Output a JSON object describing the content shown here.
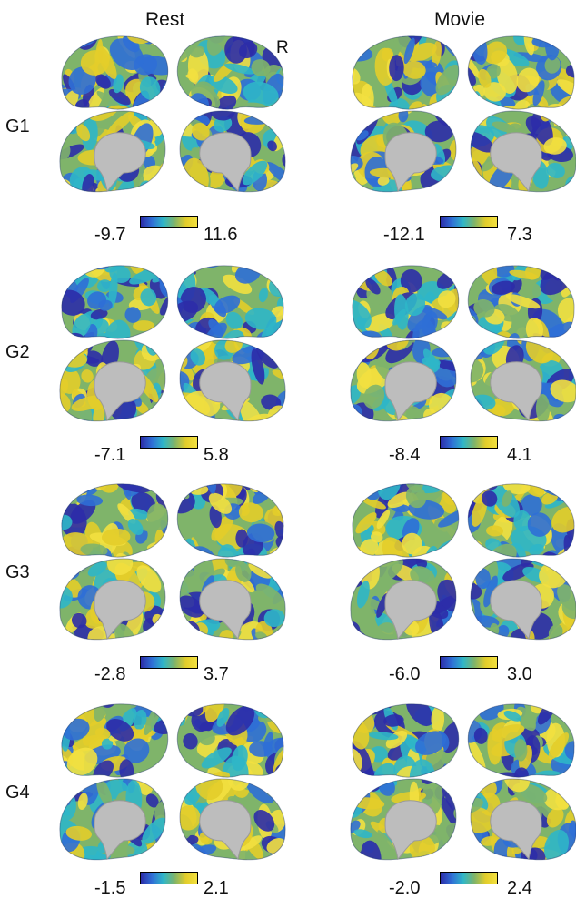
{
  "columns": [
    {
      "title": "Rest"
    },
    {
      "title": "Movie"
    }
  ],
  "hemisphere_label": "R",
  "rows": [
    {
      "label": "G1",
      "rest": {
        "min": "-9.7",
        "max": "11.6"
      },
      "movie": {
        "min": "-12.1",
        "max": "7.3"
      }
    },
    {
      "label": "G2",
      "rest": {
        "min": "-7.1",
        "max": "5.8"
      },
      "movie": {
        "min": "-8.4",
        "max": "4.1"
      }
    },
    {
      "label": "G3",
      "rest": {
        "min": "-2.8",
        "max": "3.7"
      },
      "movie": {
        "min": "-6.0",
        "max": "3.0"
      }
    },
    {
      "label": "G4",
      "rest": {
        "min": "-1.5",
        "max": "2.1"
      },
      "movie": {
        "min": "-2.0",
        "max": "2.4"
      }
    }
  ],
  "colormap": [
    "#2c2ca8",
    "#2f6fd6",
    "#2fb6c8",
    "#7fb46a",
    "#e3cd2a",
    "#f2e040"
  ],
  "brain_colors": {
    "medial_wall": "#bdbdbd",
    "outline": "#1f2f6e"
  }
}
